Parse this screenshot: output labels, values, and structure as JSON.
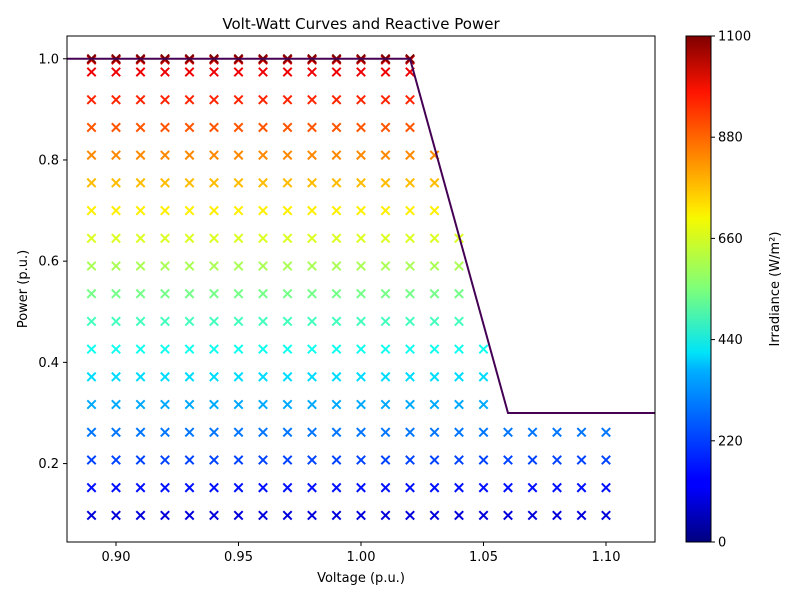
{
  "chart_data": {
    "type": "scatter",
    "title": "Volt-Watt Curves and Reactive Power",
    "xlabel": "Voltage (p.u.)",
    "ylabel": "Power (p.u.)",
    "xlim": [
      0.88,
      1.12
    ],
    "ylim": [
      0.045,
      1.045
    ],
    "xticks": [
      0.9,
      0.95,
      1.0,
      1.05,
      1.1
    ],
    "xtick_labels": [
      "0.90",
      "0.95",
      "1.00",
      "1.05",
      "1.10"
    ],
    "yticks": [
      0.2,
      0.4,
      0.6,
      0.8,
      1.0
    ],
    "ytick_labels": [
      "0.2",
      "0.4",
      "0.6",
      "0.8",
      "1.0"
    ],
    "grid": false,
    "colormap": "jet",
    "colorbar": {
      "label": "Irradiance (W/m²)",
      "range": [
        0,
        1100
      ],
      "ticks": [
        0,
        220,
        440,
        660,
        880,
        1100
      ],
      "tick_labels": [
        "0",
        "220",
        "440",
        "660",
        "880",
        "1100"
      ]
    },
    "curve": {
      "color": "#440154",
      "x": [
        0.88,
        1.02,
        1.06,
        1.12
      ],
      "y": [
        1.0,
        1.0,
        0.3,
        0.3
      ]
    },
    "marker": "x",
    "voltages": [
      0.89,
      0.9,
      0.91,
      0.92,
      0.93,
      0.94,
      0.95,
      0.96,
      0.97,
      0.98,
      0.99,
      1.0,
      1.01,
      1.02,
      1.03,
      1.04,
      1.05,
      1.06,
      1.07,
      1.08,
      1.09,
      1.1
    ],
    "irradiance_levels": [
      100,
      155,
      210,
      265,
      320,
      375,
      430,
      485,
      540,
      595,
      650,
      705,
      760,
      815,
      870,
      925,
      980,
      1000,
      1100
    ],
    "power_levels": [
      0.0976,
      0.1524,
      0.2071,
      0.2619,
      0.3167,
      0.3714,
      0.4262,
      0.481,
      0.5357,
      0.5905,
      0.6452,
      0.7,
      0.7548,
      0.8095,
      0.8643,
      0.919,
      0.9738,
      0.9976,
      1.0
    ]
  }
}
